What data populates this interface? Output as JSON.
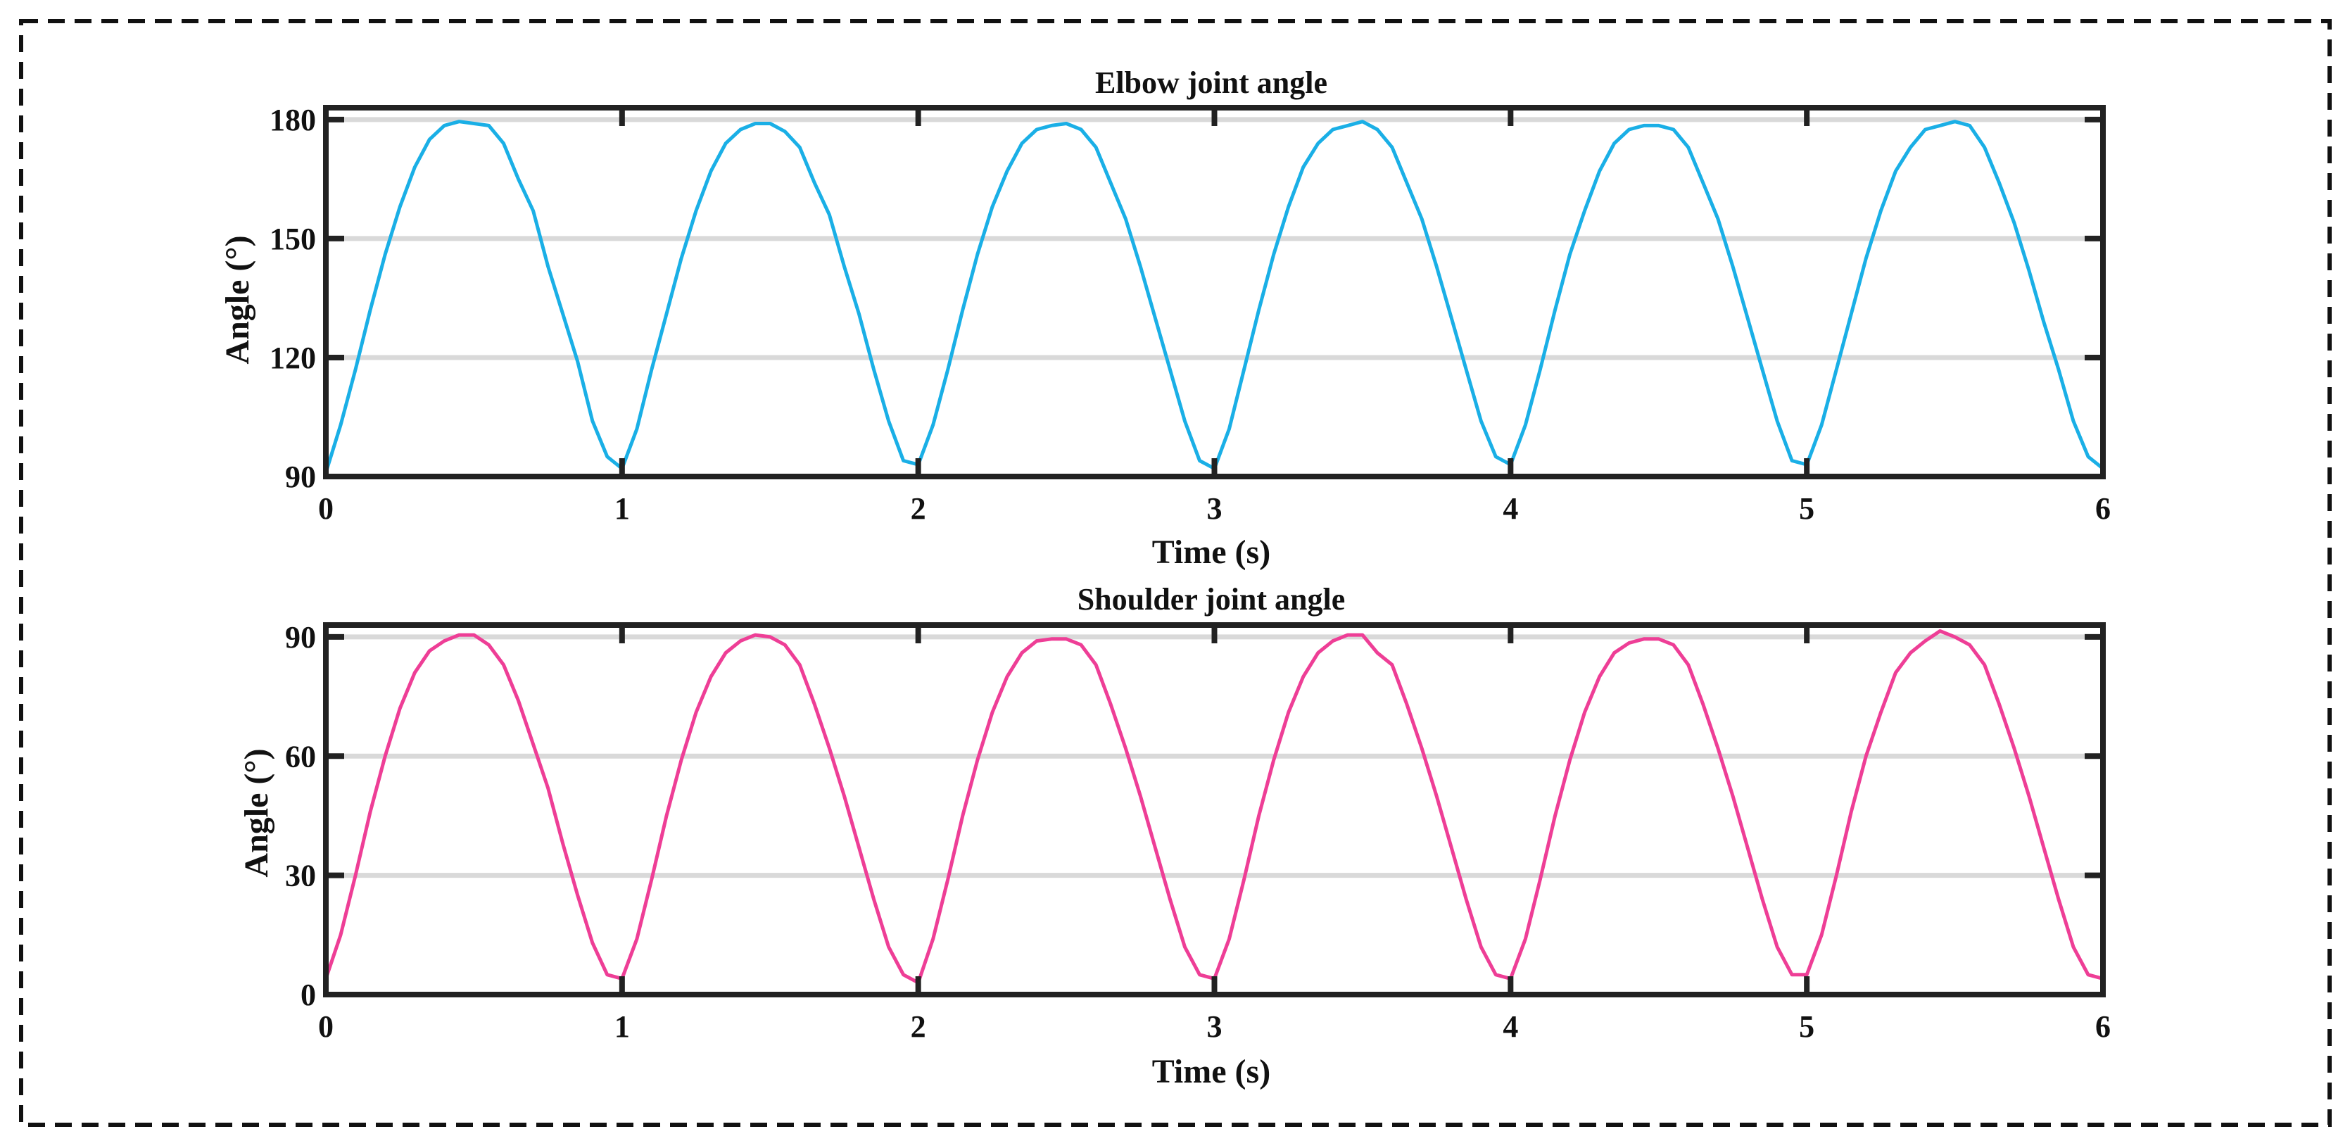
{
  "chart_data": [
    {
      "type": "line",
      "title": "Elbow joint angle",
      "xlabel": "Time (s)",
      "ylabel": "Angle (°)",
      "xlim": [
        0,
        6
      ],
      "ylim": [
        90,
        183
      ],
      "xticks": [
        0,
        1,
        2,
        3,
        4,
        5,
        6
      ],
      "xtick_labels": [
        "0",
        "1",
        "2",
        "3",
        "4",
        "5",
        "6"
      ],
      "yticks": [
        90,
        120,
        150,
        180
      ],
      "ytick_labels": [
        "90",
        "120",
        "150",
        "180"
      ],
      "grid": "horizontal",
      "series": [
        {
          "color": "#1AAFE6",
          "x": [
            0,
            0.05,
            0.1,
            0.15,
            0.2,
            0.25,
            0.3,
            0.35,
            0.4,
            0.45,
            0.5,
            0.55,
            0.6,
            0.65,
            0.7,
            0.75,
            0.8,
            0.85,
            0.9,
            0.95,
            1.0,
            1.05,
            1.1,
            1.15,
            1.2,
            1.25,
            1.3,
            1.35,
            1.4,
            1.45,
            1.5,
            1.55,
            1.6,
            1.65,
            1.7,
            1.75,
            1.8,
            1.85,
            1.9,
            1.95,
            2.0,
            2.05,
            2.1,
            2.15,
            2.2,
            2.25,
            2.3,
            2.35,
            2.4,
            2.45,
            2.5,
            2.55,
            2.6,
            2.65,
            2.7,
            2.75,
            2.8,
            2.85,
            2.9,
            2.95,
            3.0,
            3.05,
            3.1,
            3.15,
            3.2,
            3.25,
            3.3,
            3.35,
            3.4,
            3.45,
            3.5,
            3.55,
            3.6,
            3.65,
            3.7,
            3.75,
            3.8,
            3.85,
            3.9,
            3.95,
            4.0,
            4.05,
            4.1,
            4.15,
            4.2,
            4.25,
            4.3,
            4.35,
            4.4,
            4.45,
            4.5,
            4.55,
            4.6,
            4.65,
            4.7,
            4.75,
            4.8,
            4.85,
            4.9,
            4.95,
            5.0,
            5.05,
            5.1,
            5.15,
            5.2,
            5.25,
            5.3,
            5.35,
            5.4,
            5.45,
            5.5,
            5.55,
            5.6,
            5.65,
            5.7,
            5.75,
            5.8,
            5.85,
            5.9,
            5.95,
            6.0
          ],
          "y": [
            91,
            103,
            117,
            132,
            146,
            158,
            168,
            175,
            178.5,
            179.5,
            179,
            178.5,
            174,
            165,
            157,
            143,
            131,
            119,
            104,
            95,
            92,
            102,
            117,
            131,
            145,
            157,
            167,
            174,
            177.5,
            179,
            179,
            177,
            173,
            164,
            156,
            143,
            131,
            117,
            104,
            94,
            93,
            103,
            117,
            132,
            146,
            158,
            167,
            174,
            177.5,
            178.5,
            179,
            177.5,
            173,
            164,
            155,
            143,
            130,
            117,
            104,
            94,
            92,
            102,
            117,
            132,
            146,
            158,
            168,
            174,
            177.5,
            178.5,
            179.5,
            177.5,
            173,
            164,
            155,
            143,
            130,
            117,
            104,
            95,
            93,
            103,
            117,
            132,
            146,
            157,
            167,
            174,
            177.5,
            178.5,
            178.5,
            177.5,
            173,
            164,
            155,
            143,
            130,
            117,
            104,
            94,
            93,
            103,
            117,
            131,
            145,
            157,
            167,
            173,
            177.5,
            178.5,
            179.5,
            178.5,
            173,
            164,
            154,
            142,
            129,
            117,
            104,
            95,
            92
          ]
        }
      ]
    },
    {
      "type": "line",
      "title": "Shoulder joint angle",
      "xlabel": "Time (s)",
      "ylabel": "Angle (°)",
      "xlim": [
        0,
        6
      ],
      "ylim": [
        0,
        93
      ],
      "xticks": [
        0,
        1,
        2,
        3,
        4,
        5,
        6
      ],
      "xtick_labels": [
        "0",
        "1",
        "2",
        "3",
        "4",
        "5",
        "6"
      ],
      "yticks": [
        0,
        30,
        60,
        90
      ],
      "ytick_labels": [
        "0",
        "30",
        "60",
        "90"
      ],
      "grid": "horizontal",
      "series": [
        {
          "color": "#EE3E96",
          "x": [
            0,
            0.05,
            0.1,
            0.15,
            0.2,
            0.25,
            0.3,
            0.35,
            0.4,
            0.45,
            0.5,
            0.55,
            0.6,
            0.65,
            0.7,
            0.75,
            0.8,
            0.85,
            0.9,
            0.95,
            1.0,
            1.05,
            1.1,
            1.15,
            1.2,
            1.25,
            1.3,
            1.35,
            1.4,
            1.45,
            1.5,
            1.55,
            1.6,
            1.65,
            1.7,
            1.75,
            1.8,
            1.85,
            1.9,
            1.95,
            2.0,
            2.05,
            2.1,
            2.15,
            2.2,
            2.25,
            2.3,
            2.35,
            2.4,
            2.45,
            2.5,
            2.55,
            2.6,
            2.65,
            2.7,
            2.75,
            2.8,
            2.85,
            2.9,
            2.95,
            3.0,
            3.05,
            3.1,
            3.15,
            3.2,
            3.25,
            3.3,
            3.35,
            3.4,
            3.45,
            3.5,
            3.55,
            3.6,
            3.65,
            3.7,
            3.75,
            3.8,
            3.85,
            3.9,
            3.95,
            4.0,
            4.05,
            4.1,
            4.15,
            4.2,
            4.25,
            4.3,
            4.35,
            4.4,
            4.45,
            4.5,
            4.55,
            4.6,
            4.65,
            4.7,
            4.75,
            4.8,
            4.85,
            4.9,
            4.95,
            5.0,
            5.05,
            5.1,
            5.15,
            5.2,
            5.25,
            5.3,
            5.35,
            5.4,
            5.45,
            5.5,
            5.55,
            5.6,
            5.65,
            5.7,
            5.75,
            5.8,
            5.85,
            5.9,
            5.95,
            6.0
          ],
          "y": [
            4,
            15,
            30,
            46,
            60,
            72,
            81,
            86.5,
            89,
            90.5,
            90.5,
            88,
            83,
            74,
            63,
            52,
            38,
            25,
            13,
            5,
            4,
            14,
            29,
            45,
            59,
            71,
            80,
            86,
            89,
            90.5,
            90,
            88,
            83,
            73,
            62,
            50,
            37,
            24,
            12,
            5,
            3,
            14,
            29,
            45,
            59,
            71,
            80,
            86,
            89,
            89.5,
            89.5,
            88,
            83,
            73,
            62,
            50,
            37,
            24,
            12,
            5,
            4,
            14,
            29,
            45,
            59,
            71,
            80,
            86,
            89,
            90.5,
            90.5,
            86,
            83,
            73,
            62,
            50,
            37,
            24,
            12,
            5,
            4,
            14,
            29,
            45,
            59,
            71,
            80,
            86,
            88.5,
            89.5,
            89.5,
            88,
            83,
            73,
            62,
            50,
            37,
            24,
            12,
            5,
            5,
            15,
            30,
            46,
            60,
            71,
            81,
            86,
            89,
            91.5,
            90,
            88,
            83,
            73,
            62,
            50,
            37,
            24,
            12,
            5,
            4
          ]
        }
      ]
    }
  ]
}
